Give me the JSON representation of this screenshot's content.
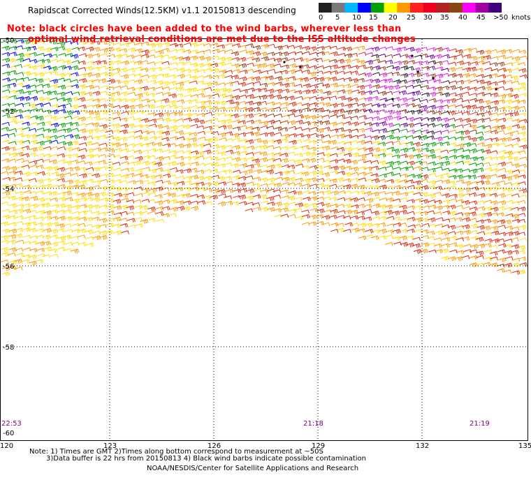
{
  "title": "Rapidscat Corrected Winds(12.5KM) v1.1 20150813 descending",
  "notice": {
    "line1": "Note: black circles have been added to the wind barbs, wherever less than",
    "line2": "optimal wind retrieval conditions are met due to the ISS altitude changes"
  },
  "legend": {
    "labels": [
      "0",
      "5",
      "10",
      "15",
      "20",
      "25",
      "30",
      "35",
      "40",
      "45",
      ">50"
    ],
    "unit": "knots",
    "colors": [
      "#202020",
      "#7a7a7a",
      "#00b8ff",
      "#0000ff",
      "#00a000",
      "#ffff00",
      "#ff9900",
      "#ff2020",
      "#ee0022",
      "#b22222",
      "#8b4513",
      "#ff00ff",
      "#a000a0",
      "#400080"
    ]
  },
  "axes": {
    "lat_labels": [
      "-50",
      "-52",
      "-54",
      "-56",
      "-58",
      "-60"
    ],
    "lon_labels": [
      "120",
      "123",
      "126",
      "129",
      "132",
      "135"
    ]
  },
  "times": [
    "22:53",
    "21:18",
    "21:19"
  ],
  "footer": {
    "line1": "Note: 1) Times are GMT 2)Times along bottom correspond to measurement at ~50S",
    "line2": "3)Data buffer is 22 hrs from 20150813 4) Black wind barbs indicate possible contamination",
    "credit": "NOAA/NESDIS/Center for Satellite Applications and Research"
  }
}
